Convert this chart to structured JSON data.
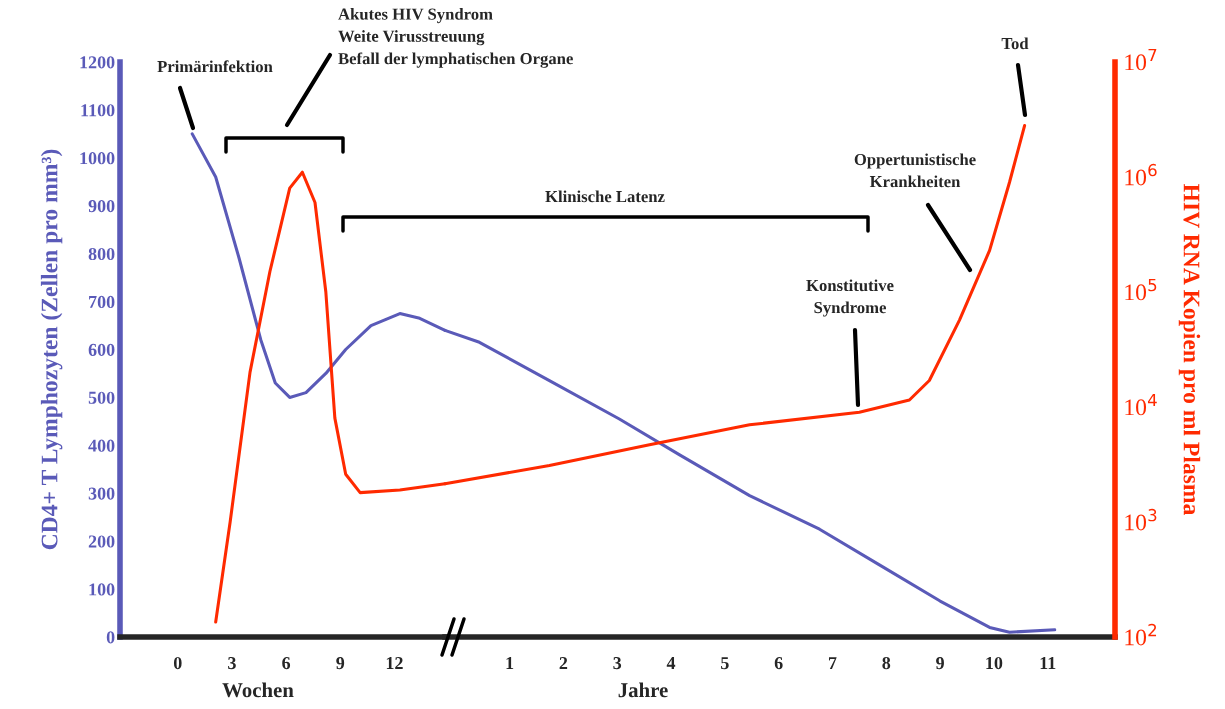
{
  "chart_data": [
    {
      "type": "line",
      "ylabel": "CD4+ T Lymphozyten (Zellen pro mm³)",
      "xlim": [
        -3.2,
        14.8
      ],
      "xticks": [
        0,
        3,
        6,
        9,
        12
      ],
      "ylim": [
        0,
        1200
      ],
      "yticks": [
        0,
        100,
        200,
        300,
        400,
        500,
        600,
        700,
        800,
        900,
        1000,
        1100,
        1200
      ],
      "y2lim": [
        100,
        10000000
      ],
      "log": "y2",
      "series": [
        {
          "color": "#5a5ab8",
          "x": [
            0.8,
            2.1,
            3.4,
            4.6,
            5.4,
            6.2,
            7.1,
            8.2,
            9.3,
            10.7,
            12.3,
            13.4,
            14.8
          ],
          "values": [
            1050,
            960,
            790,
            620,
            530,
            500,
            510,
            550,
            600,
            650,
            675,
            665,
            640
          ]
        },
        {
          "color": "#ff2a00",
          "axis": "y2",
          "x": [
            2.1,
            2.9,
            4.0,
            5.1,
            6.2,
            6.9,
            7.6,
            8.2,
            8.7,
            9.3,
            10.1,
            12.3,
            14.8
          ],
          "values": [
            135,
            1000,
            20000,
            150000,
            800000,
            1100000,
            600000,
            100000,
            8000,
            2600,
            1800,
            1900,
            2150
          ]
        }
      ],
      "annotations": [
        "Akutes HIV Syndrom\nWeite Virusstreuung\nBefall der lymphatischen Organe",
        "Primärinfektion",
        "Wochen"
      ]
    },
    {
      "type": "line",
      "y2label": "HIV RNA Kopien pro ml Plasma",
      "xlim": [
        -0.2,
        12.25
      ],
      "xticks": [
        1,
        2,
        3,
        4,
        5,
        6,
        7,
        8,
        9,
        10,
        11
      ],
      "ylim": [
        0,
        1200
      ],
      "y2lim": [
        100,
        10000000
      ],
      "log": "y2",
      "y2ticks": [
        {
          "value": 100,
          "label": "10$^{2}$"
        },
        {
          "value": 1000,
          "label": "10$^{3}$"
        },
        {
          "value": 10000,
          "label": "10$^{4}$"
        },
        {
          "value": 100000,
          "label": "10$^{5}$"
        },
        {
          "value": 1000000,
          "label": "10$^{6}$"
        },
        {
          "value": 10000000,
          "label": "10$^{7}$"
        }
      ],
      "series": [
        {
          "color": "#5a5ab8",
          "x": [
            -0.2,
            0.44,
            1.74,
            3.04,
            4.16,
            5.46,
            6.76,
            7.88,
            9.0,
            9.92,
            10.29,
            11.13
          ],
          "values": [
            640,
            615,
            535,
            455,
            380,
            295,
            225,
            150,
            75,
            20,
            10,
            15
          ]
        },
        {
          "color": "#ff2a00",
          "axis": "y2",
          "x": [
            -0.2,
            1.74,
            3.6,
            5.46,
            7.5,
            8.43,
            8.8,
            9.36,
            9.92,
            10.29,
            10.57
          ],
          "values": [
            2150,
            3100,
            4700,
            7000,
            9000,
            11500,
            17000,
            57000,
            230000,
            900000,
            2800000
          ]
        }
      ],
      "annotations": [
        "Klinische Latenz",
        "Konstitutive\nSyndrome",
        "Oppertunistische\nKrankheiten",
        "Tod",
        "Jahre"
      ]
    }
  ]
}
